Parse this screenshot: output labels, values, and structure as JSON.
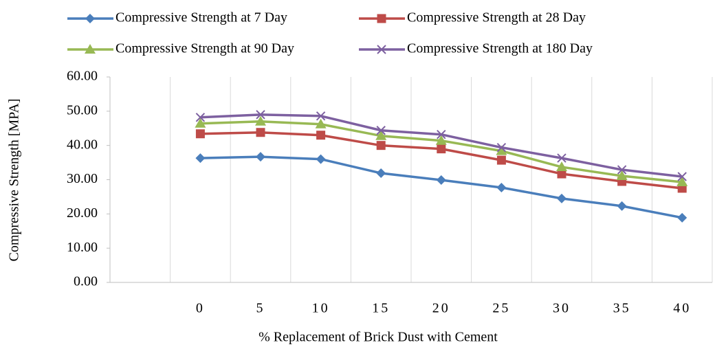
{
  "chart_data": {
    "type": "line",
    "x_label": "% Replacement of Brick Dust with Cement",
    "y_label": "Compressive Strength [MPA]",
    "categories": [
      null,
      "0",
      "5",
      "10",
      "15",
      "20",
      "25",
      "30",
      "35",
      "40"
    ],
    "series": [
      {
        "name": "Compressive Strength at 7 Day",
        "color": "#4a7ebb",
        "marker": "diamond",
        "values": [
          null,
          36.3,
          36.7,
          36.0,
          31.9,
          29.9,
          27.7,
          24.5,
          22.3,
          18.9
        ]
      },
      {
        "name": "Compressive Strength at 28 Day",
        "color": "#be4b48",
        "marker": "square",
        "values": [
          null,
          43.4,
          43.8,
          43.0,
          40.0,
          39.0,
          35.7,
          31.7,
          29.5,
          27.5
        ]
      },
      {
        "name": "Compressive Strength at 90 Day",
        "color": "#98b954",
        "marker": "triangle",
        "values": [
          null,
          46.4,
          47.0,
          46.2,
          42.8,
          41.4,
          38.4,
          33.7,
          31.1,
          29.3
        ]
      },
      {
        "name": "Compressive Strength at 180 Day",
        "color": "#7d60a0",
        "marker": "x",
        "values": [
          null,
          48.2,
          49.0,
          48.6,
          44.4,
          43.2,
          39.4,
          36.3,
          32.9,
          30.9
        ]
      }
    ],
    "ylim": [
      0,
      60
    ],
    "yticks": [
      {
        "value": 0,
        "label": "0.00"
      },
      {
        "value": 10,
        "label": "10.00"
      },
      {
        "value": 20,
        "label": "20.00"
      },
      {
        "value": 30,
        "label": "30.00"
      },
      {
        "value": 40,
        "label": "40.00"
      },
      {
        "value": 50,
        "label": "50.00"
      },
      {
        "value": 60,
        "label": "60.00"
      }
    ],
    "legend": "top"
  }
}
